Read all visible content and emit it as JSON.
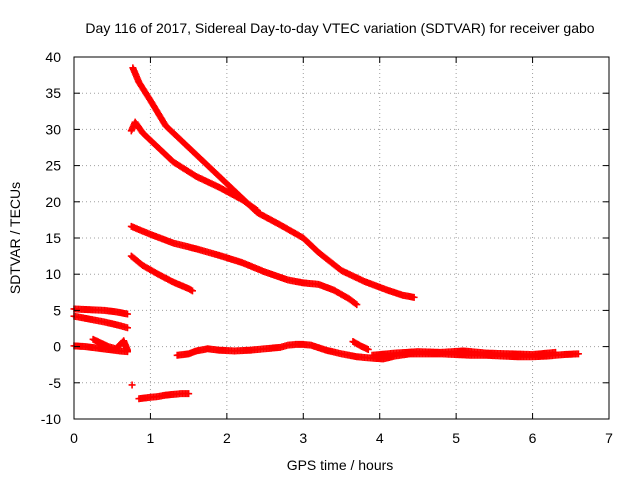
{
  "chart_data": {
    "type": "scatter",
    "title": "Day 116 of 2017, Sidereal Day-to-day VTEC variation (SDTVAR) for receiver gabo",
    "xlabel": "GPS time / hours",
    "ylabel": "SDTVAR / TECUs",
    "xlim": [
      0,
      7
    ],
    "ylim": [
      -10,
      40
    ],
    "xticks": [
      "0",
      "1",
      "2",
      "3",
      "4",
      "5",
      "6",
      "7"
    ],
    "yticks": [
      "-10",
      "-5",
      "0",
      "5",
      "10",
      "15",
      "20",
      "25",
      "30",
      "35",
      "40"
    ],
    "grid": true,
    "color": "#ff0000",
    "marker": "plus",
    "series": [
      {
        "x": [
          0.77,
          0.85,
          1.0,
          1.2,
          1.5,
          1.8,
          2.1,
          2.4,
          2.7,
          3.0,
          3.2,
          3.5,
          3.8,
          4.1,
          4.3,
          4.45
        ],
        "y": [
          38.5,
          36.5,
          34.0,
          30.5,
          27.5,
          24.5,
          21.5,
          18.5,
          16.8,
          15.0,
          13.0,
          10.5,
          9.0,
          7.8,
          7.1,
          6.8
        ]
      },
      {
        "x": [
          0.75,
          0.8,
          0.9,
          1.1,
          1.3,
          1.6,
          1.9,
          2.2,
          2.4
        ],
        "y": [
          29.8,
          31.0,
          29.5,
          27.5,
          25.5,
          23.5,
          22.0,
          20.3,
          18.8
        ]
      },
      {
        "x": [
          0.75,
          1.0,
          1.3,
          1.6,
          1.9,
          2.2,
          2.5,
          2.8,
          3.0,
          3.2,
          3.4,
          3.6,
          3.7
        ],
        "y": [
          16.6,
          15.5,
          14.3,
          13.5,
          12.6,
          11.6,
          10.3,
          9.2,
          8.8,
          8.6,
          7.8,
          6.6,
          5.8
        ]
      },
      {
        "x": [
          0.75,
          0.9,
          1.1,
          1.3,
          1.5,
          1.55
        ],
        "y": [
          12.5,
          11.2,
          10.0,
          8.9,
          8.0,
          7.7
        ]
      },
      {
        "x": [
          0.0,
          0.2,
          0.4,
          0.55,
          0.7
        ],
        "y": [
          5.2,
          5.1,
          5.0,
          4.8,
          4.5
        ]
      },
      {
        "x": [
          0.0,
          0.2,
          0.4,
          0.6,
          0.7
        ],
        "y": [
          4.2,
          3.8,
          3.4,
          2.9,
          2.6
        ]
      },
      {
        "x": [
          0.0,
          0.15,
          0.3,
          0.45,
          0.6,
          0.7
        ],
        "y": [
          0.1,
          0.0,
          -0.2,
          -0.4,
          -0.6,
          -0.7
        ]
      },
      {
        "x": [
          0.25,
          0.35,
          0.45,
          0.55,
          0.65,
          0.7
        ],
        "y": [
          1.0,
          0.5,
          0.0,
          -0.3,
          0.8,
          -0.5
        ]
      },
      {
        "x": [
          0.76
        ],
        "y": [
          -5.3
        ]
      },
      {
        "x": [
          0.85,
          1.0,
          1.1,
          1.2,
          1.3,
          1.4,
          1.5
        ],
        "y": [
          -7.2,
          -7.0,
          -6.9,
          -6.7,
          -6.6,
          -6.5,
          -6.5
        ]
      },
      {
        "x": [
          1.35,
          1.5,
          1.6,
          1.75,
          1.9,
          2.1,
          2.3,
          2.5,
          2.7,
          2.8,
          2.9,
          3.0,
          3.1,
          3.3,
          3.5,
          3.7,
          3.9,
          4.05,
          4.2,
          4.4,
          4.6,
          4.8,
          5.0,
          5.2,
          5.4,
          5.6,
          5.8,
          6.0,
          6.2,
          6.4,
          6.6
        ],
        "y": [
          -1.2,
          -1.0,
          -0.6,
          -0.3,
          -0.5,
          -0.6,
          -0.5,
          -0.3,
          -0.1,
          0.2,
          0.3,
          0.3,
          0.2,
          -0.5,
          -1.0,
          -1.4,
          -1.6,
          -1.7,
          -1.3,
          -1.0,
          -1.0,
          -1.0,
          -1.1,
          -1.2,
          -1.2,
          -1.3,
          -1.4,
          -1.4,
          -1.3,
          -1.1,
          -1.0
        ]
      },
      {
        "x": [
          3.65,
          3.75,
          3.85
        ],
        "y": [
          0.7,
          0.1,
          -0.4
        ]
      },
      {
        "x": [
          3.9,
          4.2,
          4.5,
          4.8,
          5.1,
          5.4,
          5.7,
          6.0,
          6.3
        ],
        "y": [
          -1.2,
          -0.9,
          -0.7,
          -0.8,
          -0.6,
          -0.9,
          -1.0,
          -1.1,
          -0.8
        ]
      }
    ]
  }
}
